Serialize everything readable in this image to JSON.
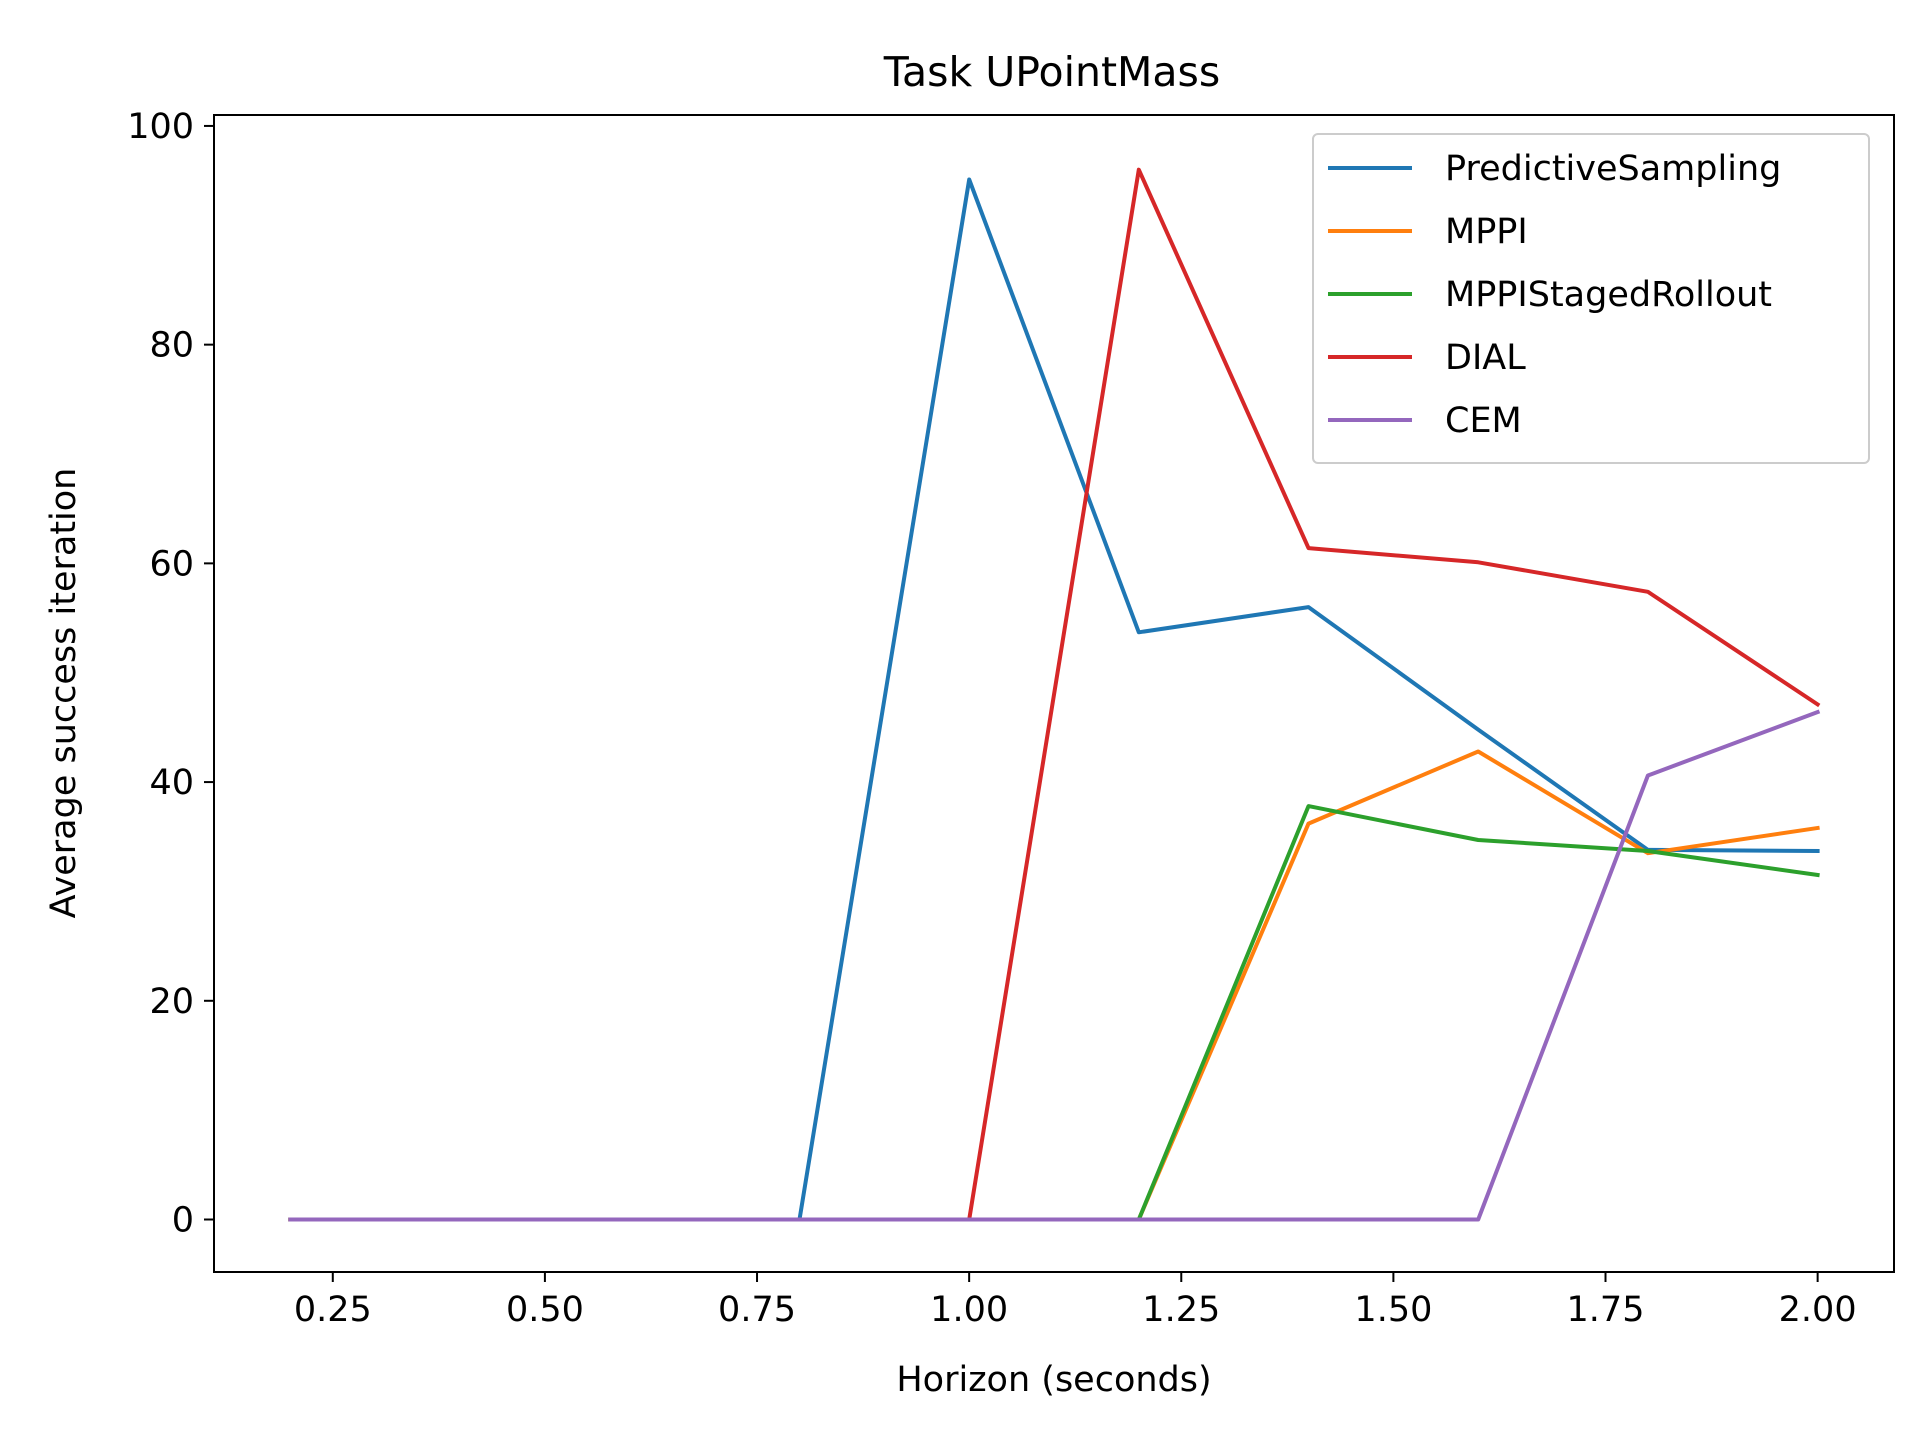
{
  "chart_data": {
    "type": "line",
    "title": "Task UPointMass",
    "xlabel": "Horizon (seconds)",
    "ylabel": "Average success iteration",
    "xlim": [
      0.11,
      2.09
    ],
    "ylim": [
      -4.8,
      101
    ],
    "xticks": [
      0.25,
      0.5,
      0.75,
      1.0,
      1.25,
      1.5,
      1.75,
      2.0
    ],
    "xtick_labels": [
      "0.25",
      "0.50",
      "0.75",
      "1.00",
      "1.25",
      "1.50",
      "1.75",
      "2.00"
    ],
    "yticks": [
      0,
      20,
      40,
      60,
      80,
      100
    ],
    "ytick_labels": [
      "0",
      "20",
      "40",
      "60",
      "80",
      "100"
    ],
    "grid": false,
    "legend_position": "top-right",
    "x": [
      0.2,
      0.4,
      0.6,
      0.8,
      1.0,
      1.2,
      1.4,
      1.6,
      1.8,
      2.0
    ],
    "series": [
      {
        "name": "PredictiveSampling",
        "color": "#1f77b4",
        "values": [
          0,
          0,
          0,
          0,
          95.1,
          53.7,
          56.0,
          44.8,
          33.8,
          33.7
        ]
      },
      {
        "name": "MPPI",
        "color": "#ff7f0e",
        "values": [
          0,
          0,
          0,
          0,
          0,
          0,
          36.2,
          42.8,
          33.5,
          35.8
        ]
      },
      {
        "name": "MPPIStagedRollout",
        "color": "#2ca02c",
        "values": [
          0,
          0,
          0,
          0,
          0,
          0,
          37.8,
          34.7,
          33.7,
          31.5
        ]
      },
      {
        "name": "DIAL",
        "color": "#d62728",
        "values": [
          0,
          0,
          0,
          0,
          0,
          96.0,
          61.4,
          60.1,
          57.4,
          47.1
        ]
      },
      {
        "name": "CEM",
        "color": "#9467bd",
        "values": [
          0,
          0,
          0,
          0,
          0,
          0,
          0,
          0,
          40.6,
          46.4
        ]
      }
    ]
  }
}
